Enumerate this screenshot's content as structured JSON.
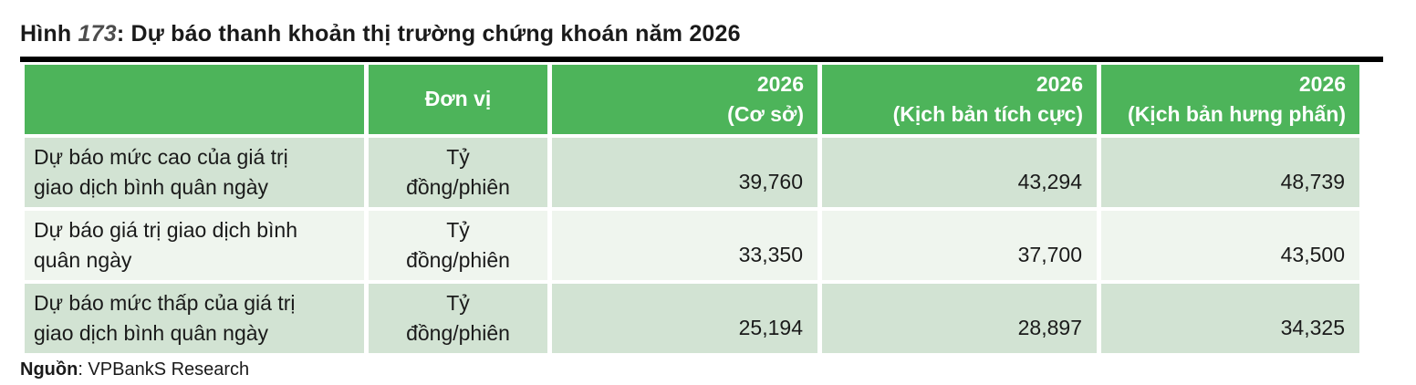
{
  "title": {
    "prefix": "Hình ",
    "number": "173",
    "caption": ": Dự báo thanh khoản thị trường chứng khoán năm 2026"
  },
  "table": {
    "header": [
      "",
      "Đơn vị",
      "2026\n(Cơ sở)",
      "2026\n(Kịch bản tích cực)",
      "2026\n(Kịch bản hưng phấn)"
    ],
    "rows": [
      {
        "label": "Dự báo mức cao của giá trị\ngiao dịch bình quân ngày",
        "unit": "Tỷ\nđồng/phiên",
        "values": [
          "39,760",
          "43,294",
          "48,739"
        ]
      },
      {
        "label": "Dự báo giá trị giao dịch bình\nquân ngày",
        "unit": "Tỷ\nđồng/phiên",
        "values": [
          "33,350",
          "37,700",
          "43,500"
        ]
      },
      {
        "label": "Dự báo mức thấp của giá trị\ngiao dịch bình quân ngày",
        "unit": "Tỷ\nđồng/phiên",
        "values": [
          "25,194",
          "28,897",
          "34,325"
        ]
      }
    ]
  },
  "footer": {
    "source_label": "Nguồn",
    "source_rest": ": VPBankS Research"
  },
  "colors": {
    "header_bg": "#4DB45A",
    "header_text": "#FFFFFF",
    "row_odd_bg": "#D2E3D3",
    "row_even_bg": "#EFF5EE",
    "title_number": "#4D4D4D",
    "rule": "#000000",
    "text": "#1A1A1A"
  }
}
